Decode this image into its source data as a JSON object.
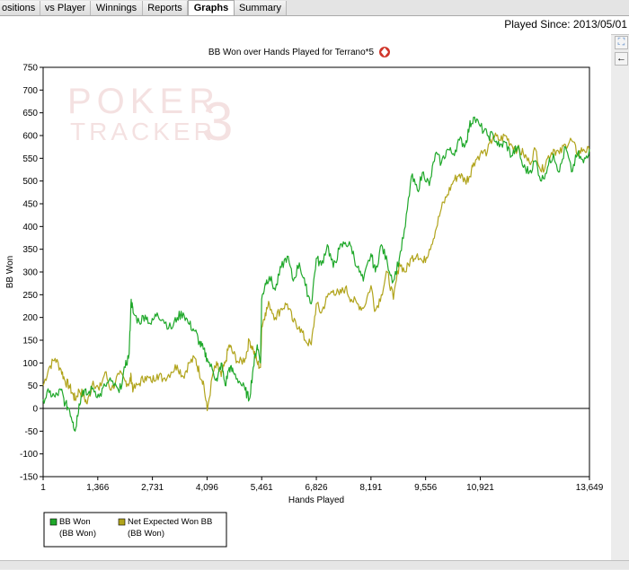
{
  "tabs": [
    {
      "label": "ositions",
      "active": false
    },
    {
      "label": "vs Player",
      "active": false
    },
    {
      "label": "Winnings",
      "active": false
    },
    {
      "label": "Reports",
      "active": false
    },
    {
      "label": "Graphs",
      "active": true
    },
    {
      "label": "Summary",
      "active": false
    }
  ],
  "played_since": "Played Since: 2013/05/01",
  "side_buttons": [
    {
      "icon": "expand-icon",
      "glyph": "⛶"
    },
    {
      "icon": "arrow-left-icon",
      "glyph": "←"
    }
  ],
  "chart_data": {
    "type": "line",
    "title": "BB Won over Hands Played for Terrano*5",
    "title_icon": "poker-chip-icon",
    "xlabel": "Hands Played",
    "ylabel": "BB Won",
    "xlim": [
      1,
      13649
    ],
    "ylim": [
      -150,
      750
    ],
    "x_ticks": [
      1,
      1366,
      2731,
      4096,
      5461,
      6826,
      8191,
      9556,
      10921,
      13649
    ],
    "x_tick_labels": [
      "1",
      "1,366",
      "2,731",
      "4,096",
      "5,461",
      "6,826",
      "8,191",
      "9,556",
      "10,921",
      "13,649"
    ],
    "y_ticks": [
      -150,
      -100,
      -50,
      0,
      50,
      100,
      150,
      200,
      250,
      300,
      350,
      400,
      450,
      500,
      550,
      600,
      650,
      700,
      750
    ],
    "grid": false,
    "watermark": {
      "line1": "POKER",
      "line2": "TRACKER",
      "mark": "3"
    },
    "legend_position": "bottom-left",
    "series": [
      {
        "name": "BB Won",
        "sub": "(BB Won)",
        "color": "#1fa82a",
        "x": [
          1,
          150,
          300,
          450,
          550,
          650,
          750,
          800,
          900,
          1000,
          1100,
          1250,
          1400,
          1550,
          1700,
          1900,
          2050,
          2150,
          2200,
          2250,
          2400,
          2550,
          2700,
          2850,
          3000,
          3200,
          3350,
          3500,
          3650,
          3800,
          3900,
          4000,
          4100,
          4250,
          4350,
          4450,
          4550,
          4650,
          4750,
          4900,
          5050,
          5150,
          5250,
          5350,
          5430,
          5461,
          5550,
          5650,
          5800,
          5950,
          6100,
          6250,
          6400,
          6550,
          6700,
          6826,
          6950,
          7100,
          7250,
          7400,
          7550,
          7700,
          7850,
          8000,
          8191,
          8300,
          8450,
          8600,
          8750,
          8900,
          9050,
          9200,
          9350,
          9500,
          9650,
          9800,
          9950,
          10100,
          10250,
          10400,
          10550,
          10650,
          10750,
          10921,
          11100,
          11250,
          11400,
          11550,
          11700,
          11850,
          12000,
          12150,
          12300,
          12450,
          12600,
          12750,
          12900,
          13050,
          13200,
          13350,
          13500,
          13649
        ],
        "values": [
          20,
          35,
          25,
          40,
          10,
          0,
          -30,
          -50,
          10,
          40,
          30,
          45,
          25,
          50,
          60,
          35,
          90,
          120,
          240,
          210,
          190,
          205,
          185,
          210,
          195,
          175,
          200,
          210,
          185,
          170,
          145,
          130,
          110,
          80,
          60,
          100,
          50,
          90,
          80,
          60,
          40,
          20,
          90,
          140,
          100,
          240,
          275,
          290,
          260,
          310,
          335,
          280,
          320,
          270,
          230,
          330,
          315,
          360,
          310,
          350,
          365,
          355,
          310,
          280,
          340,
          300,
          360,
          320,
          280,
          330,
          400,
          510,
          480,
          520,
          490,
          560,
          540,
          570,
          560,
          590,
          580,
          620,
          640,
          620,
          600,
          600,
          575,
          585,
          555,
          575,
          530,
          520,
          545,
          500,
          530,
          560,
          520,
          575,
          520,
          560,
          540,
          570
        ]
      },
      {
        "name": "Net Expected Won BB",
        "sub": "(BB Won)",
        "color": "#b1a41c",
        "x": [
          1,
          150,
          300,
          450,
          550,
          650,
          750,
          800,
          900,
          1000,
          1100,
          1250,
          1400,
          1550,
          1700,
          1900,
          2050,
          2150,
          2200,
          2250,
          2400,
          2550,
          2700,
          2850,
          3000,
          3200,
          3350,
          3500,
          3650,
          3800,
          3900,
          4000,
          4100,
          4250,
          4350,
          4450,
          4550,
          4650,
          4750,
          4900,
          5050,
          5150,
          5250,
          5350,
          5430,
          5461,
          5550,
          5650,
          5800,
          5950,
          6100,
          6250,
          6400,
          6550,
          6700,
          6826,
          6950,
          7100,
          7250,
          7400,
          7550,
          7700,
          7850,
          8000,
          8191,
          8300,
          8450,
          8600,
          8750,
          8900,
          9050,
          9200,
          9350,
          9500,
          9650,
          9800,
          9950,
          10100,
          10250,
          10400,
          10550,
          10650,
          10750,
          10921,
          11100,
          11250,
          11400,
          11550,
          11700,
          11850,
          12000,
          12150,
          12300,
          12450,
          12600,
          12750,
          12900,
          13050,
          13200,
          13350,
          13500,
          13649
        ],
        "values": [
          50,
          90,
          110,
          85,
          60,
          50,
          30,
          20,
          40,
          30,
          10,
          60,
          40,
          80,
          40,
          75,
          60,
          55,
          70,
          40,
          55,
          70,
          60,
          75,
          65,
          80,
          95,
          70,
          100,
          110,
          80,
          60,
          -5,
          80,
          95,
          70,
          100,
          140,
          120,
          100,
          110,
          150,
          130,
          100,
          90,
          180,
          210,
          230,
          200,
          220,
          230,
          190,
          180,
          150,
          140,
          230,
          210,
          245,
          260,
          250,
          265,
          240,
          230,
          220,
          270,
          215,
          250,
          300,
          240,
          320,
          300,
          330,
          340,
          320,
          350,
          390,
          440,
          470,
          500,
          515,
          500,
          510,
          540,
          560,
          565,
          600,
          590,
          600,
          580,
          570,
          560,
          540,
          570,
          520,
          550,
          570,
          560,
          580,
          590,
          560,
          570,
          565
        ]
      }
    ]
  }
}
